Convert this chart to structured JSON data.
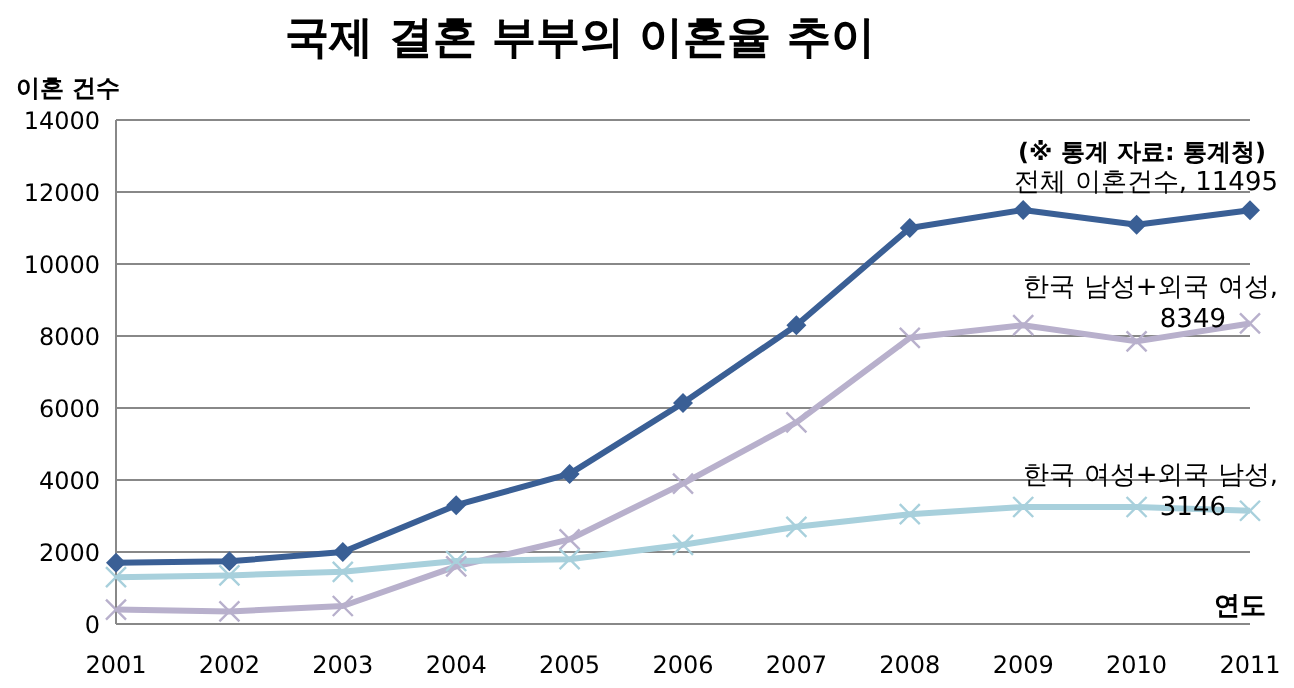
{
  "chart_data": {
    "type": "line",
    "title": "국제 결혼 부부의 이혼율 추이",
    "ylabel": "이혼 건수",
    "xlabel": "연도",
    "annotations": [
      "(※ 통계 자료: 통계청)"
    ],
    "categories": [
      "2001",
      "2002",
      "2003",
      "2004",
      "2005",
      "2006",
      "2007",
      "2008",
      "2009",
      "2010",
      "2011"
    ],
    "series": [
      {
        "name": "전체 이혼건수,",
        "color": "#3a5f95",
        "marker": "diamond",
        "values": [
          1700,
          1740,
          2000,
          3300,
          4170,
          6140,
          8300,
          11000,
          11500,
          11090,
          11495
        ],
        "value_labels": [
          null,
          null,
          null,
          null,
          null,
          null,
          null,
          null,
          null,
          null,
          "11495"
        ]
      },
      {
        "name": "한국 남성+외국 여성,",
        "color": "#b8b0cc",
        "marker": "cross",
        "values": [
          400,
          350,
          500,
          1600,
          2350,
          3900,
          5600,
          7950,
          8300,
          7850,
          8349
        ],
        "value_labels": [
          null,
          null,
          null,
          null,
          null,
          null,
          null,
          null,
          null,
          null,
          "8349"
        ]
      },
      {
        "name": "한국 여성+외국 남성,",
        "color": "#a8d0dc",
        "marker": "cross",
        "values": [
          1300,
          1350,
          1450,
          1750,
          1800,
          2200,
          2700,
          3050,
          3250,
          3250,
          3146
        ],
        "value_labels": [
          null,
          null,
          null,
          null,
          null,
          null,
          null,
          null,
          null,
          null,
          "3146"
        ]
      }
    ],
    "ylim": [
      0,
      14000
    ],
    "yticks": [
      0,
      2000,
      4000,
      6000,
      8000,
      10000,
      12000,
      14000
    ],
    "grid": "y",
    "legend": false
  }
}
